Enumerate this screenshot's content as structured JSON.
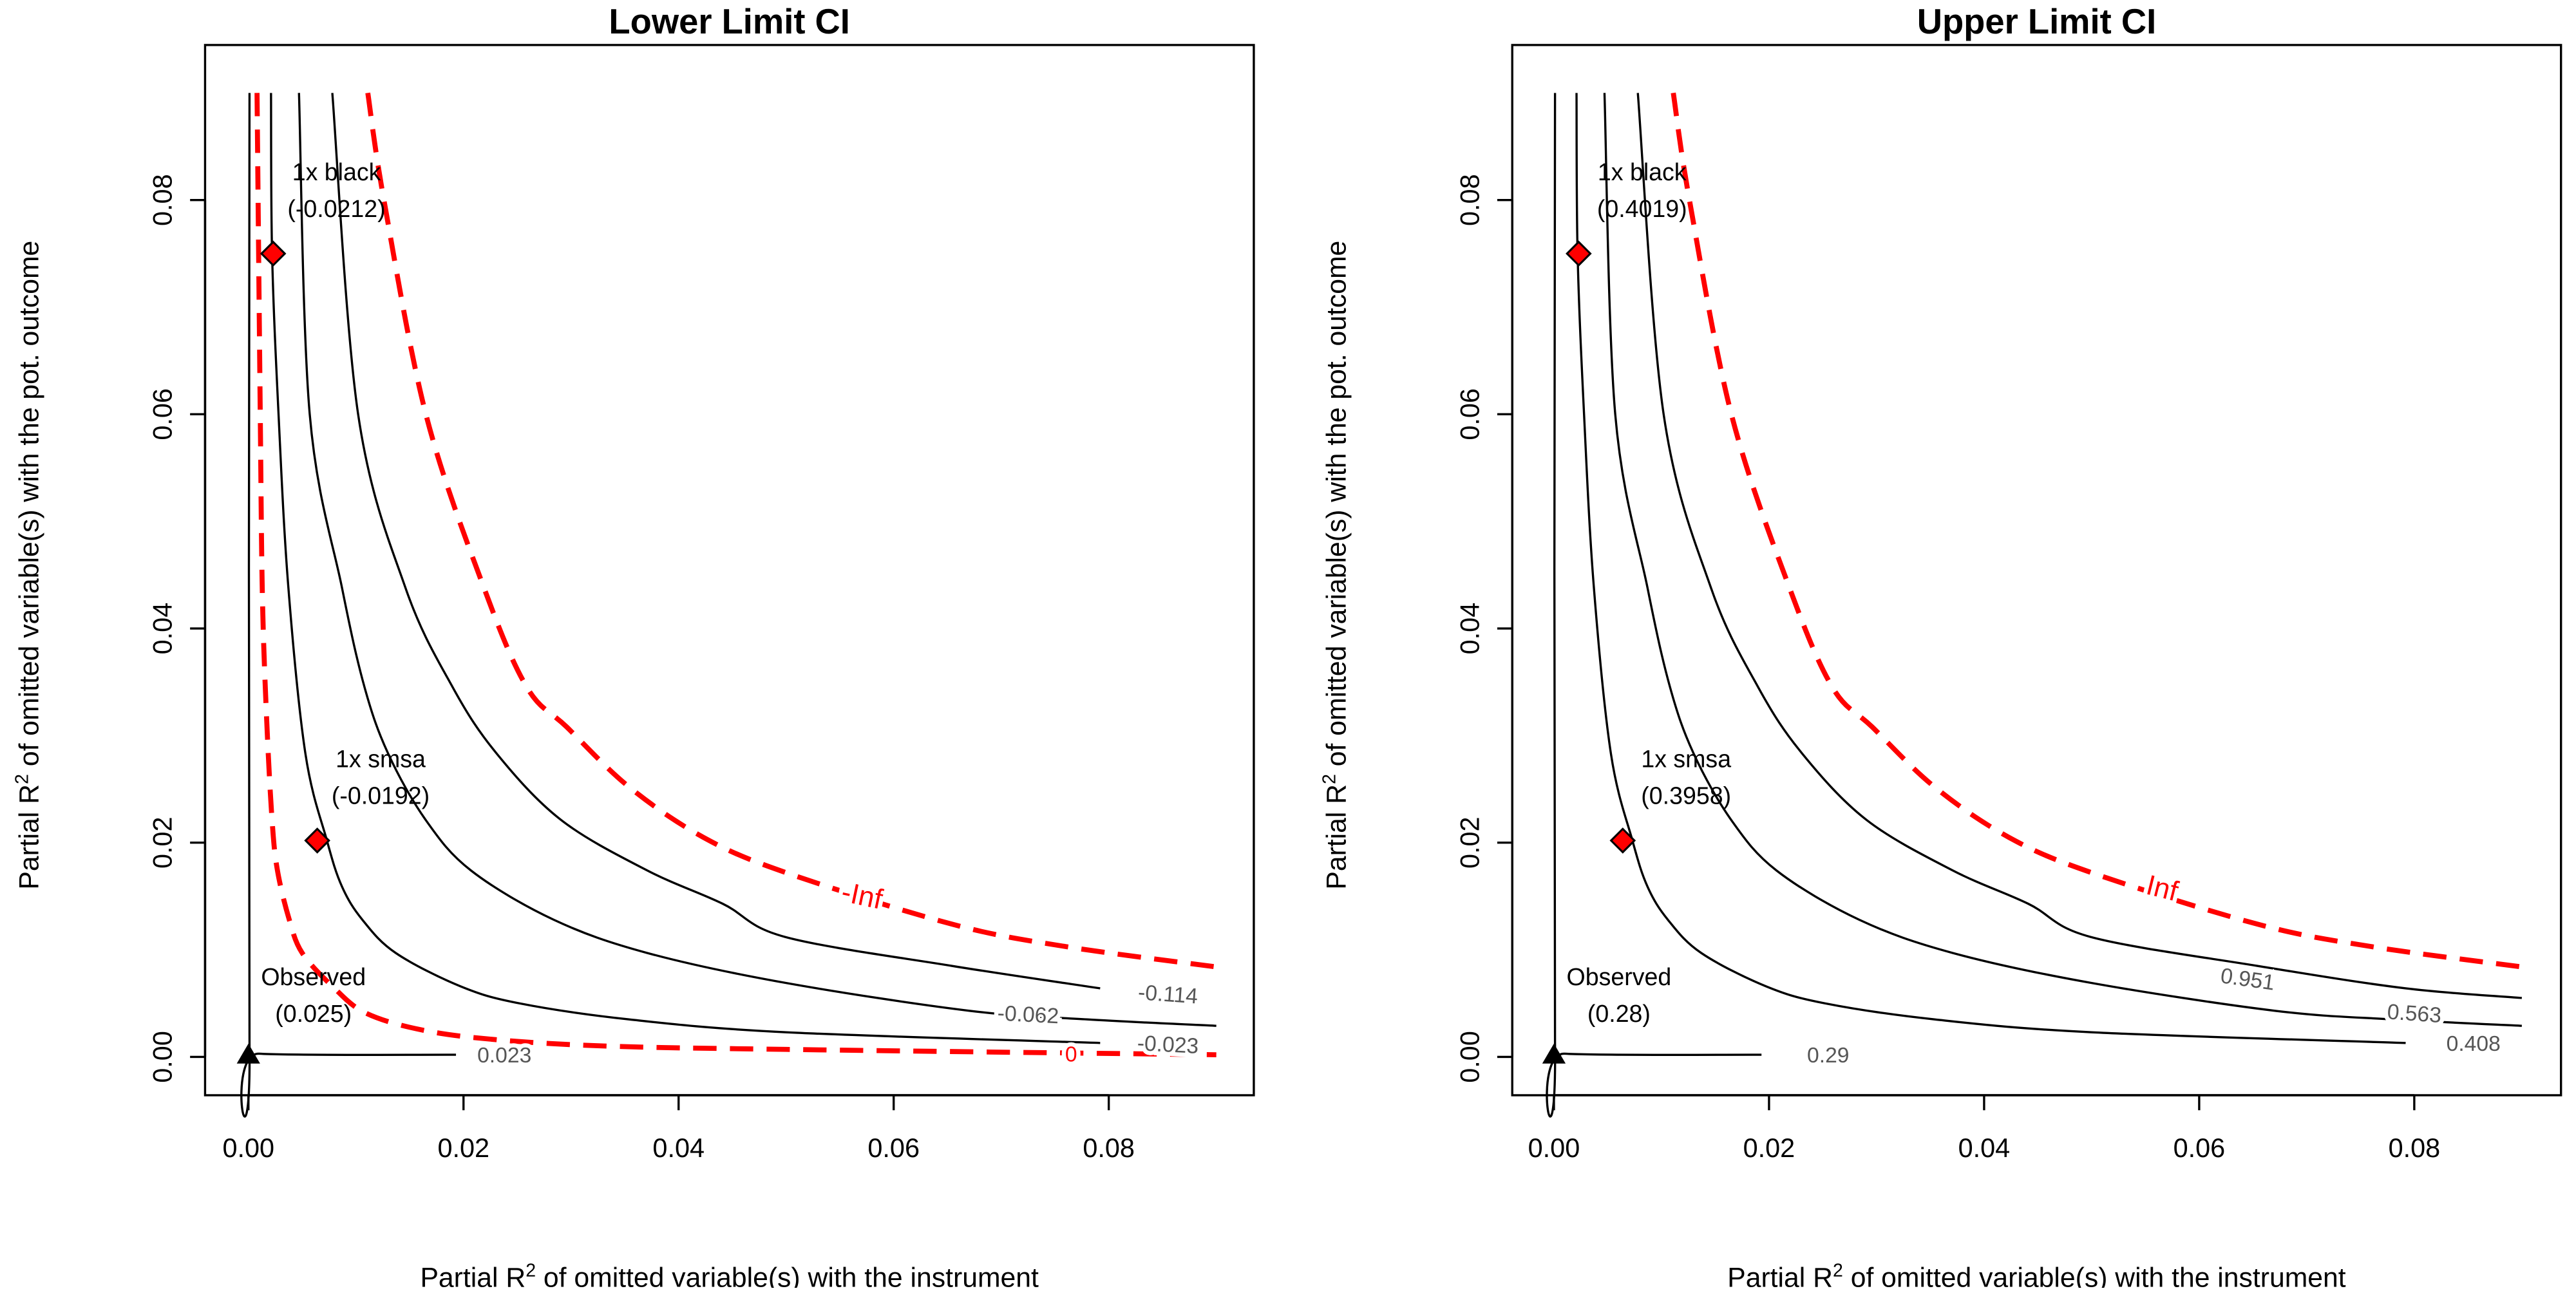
{
  "chart_data": [
    {
      "type": "contour",
      "title": "Lower Limit CI",
      "xlabel": "Partial R^2 of omitted variable(s) with the instrument",
      "ylabel": "Partial R^2 of omitted variable(s) with the pot. outcome",
      "xlim": [
        -0.0035,
        0.0935
      ],
      "ylim": [
        -0.0035,
        0.0945
      ],
      "xticks": [
        "0.00",
        "0.02",
        "0.04",
        "0.06",
        "0.08"
      ],
      "yticks": [
        "0.00",
        "0.02",
        "0.04",
        "0.06",
        "0.08"
      ],
      "grid": false,
      "colors": {
        "contour": "#000000",
        "critical": "#ff0000",
        "benchmark": "#ff0000"
      },
      "contours": [
        {
          "level": "0.023",
          "style": "solid",
          "points": [
            [
              0.0001,
              0.09
            ],
            [
              0.0001,
              0.0013
            ],
            [
              0.001,
              0.0003
            ],
            [
              0.0193,
              0.0002
            ]
          ]
        },
        {
          "level": "0",
          "style": "dashed-red",
          "points": [
            [
              0.0008,
              0.09
            ],
            [
              0.0011,
              0.06
            ],
            [
              0.0013,
              0.043
            ],
            [
              0.0017,
              0.0314
            ],
            [
              0.0022,
              0.0221
            ],
            [
              0.0027,
              0.0174
            ],
            [
              0.0038,
              0.0128
            ],
            [
              0.005,
              0.0097
            ],
            [
              0.0078,
              0.0066
            ],
            [
              0.0109,
              0.0041
            ],
            [
              0.0162,
              0.0025
            ],
            [
              0.0231,
              0.0016
            ],
            [
              0.0336,
              0.001
            ],
            [
              0.05,
              0.0007
            ],
            [
              0.09,
              0.0002
            ]
          ]
        },
        {
          "level": "-0.023",
          "style": "solid",
          "points": [
            [
              0.0021,
              0.09
            ],
            [
              0.0022,
              0.075
            ],
            [
              0.0028,
              0.06
            ],
            [
              0.0037,
              0.044
            ],
            [
              0.0053,
              0.0283
            ],
            [
              0.0073,
              0.0202
            ],
            [
              0.0087,
              0.0159
            ],
            [
              0.0106,
              0.0128
            ],
            [
              0.0137,
              0.0097
            ],
            [
              0.0197,
              0.0066
            ],
            [
              0.0252,
              0.005
            ],
            [
              0.0354,
              0.0035
            ],
            [
              0.05,
              0.0023
            ],
            [
              0.0792,
              0.0013
            ]
          ]
        },
        {
          "level": "-0.062",
          "style": "solid",
          "points": [
            [
              0.0047,
              0.09
            ],
            [
              0.0057,
              0.06
            ],
            [
              0.0087,
              0.0438
            ],
            [
              0.0108,
              0.0345
            ],
            [
              0.013,
              0.0283
            ],
            [
              0.0165,
              0.0221
            ],
            [
              0.0207,
              0.0174
            ],
            [
              0.0284,
              0.0128
            ],
            [
              0.0371,
              0.0097
            ],
            [
              0.05,
              0.0069
            ],
            [
              0.0671,
              0.0043
            ],
            [
              0.078,
              0.0035
            ],
            [
              0.09,
              0.0029
            ]
          ]
        },
        {
          "level": "-0.114",
          "style": "solid",
          "points": [
            [
              0.0078,
              0.09
            ],
            [
              0.0102,
              0.06
            ],
            [
              0.0146,
              0.0438
            ],
            [
              0.019,
              0.0345
            ],
            [
              0.0231,
              0.0283
            ],
            [
              0.0291,
              0.0221
            ],
            [
              0.0371,
              0.0174
            ],
            [
              0.0441,
              0.0143
            ],
            [
              0.0499,
              0.0112
            ],
            [
              0.0654,
              0.0085
            ],
            [
              0.0792,
              0.0064
            ]
          ]
        },
        {
          "level": "-Inf",
          "style": "dashed-red",
          "points": [
            [
              0.0111,
              0.09
            ],
            [
              0.0126,
              0.08
            ],
            [
              0.0165,
              0.06
            ],
            [
              0.0219,
              0.0438
            ],
            [
              0.0259,
              0.0345
            ],
            [
              0.0296,
              0.0308
            ],
            [
              0.0354,
              0.0252
            ],
            [
              0.0423,
              0.0205
            ],
            [
              0.05,
              0.0172
            ],
            [
              0.0654,
              0.0124
            ],
            [
              0.076,
              0.0103
            ],
            [
              0.09,
              0.0084
            ]
          ]
        }
      ],
      "points": [
        {
          "name": "Observed",
          "value": "(0.025)",
          "x": 0,
          "y": 0,
          "shape": "triangle"
        },
        {
          "name": "1x black",
          "value": "(-0.0212)",
          "x": 0.0023,
          "y": 0.075,
          "shape": "diamond"
        },
        {
          "name": "1x smsa",
          "value": "(-0.0192)",
          "x": 0.0064,
          "y": 0.0202,
          "shape": "diamond"
        }
      ]
    },
    {
      "type": "contour",
      "title": "Upper Limit CI",
      "xlabel": "Partial R^2 of omitted variable(s) with the instrument",
      "ylabel": "Partial R^2 of omitted variable(s) with the pot. outcome",
      "xlim": [
        -0.0035,
        0.0935
      ],
      "ylim": [
        -0.0035,
        0.0945
      ],
      "xticks": [
        "0.00",
        "0.02",
        "0.04",
        "0.06",
        "0.08"
      ],
      "yticks": [
        "0.00",
        "0.02",
        "0.04",
        "0.06",
        "0.08"
      ],
      "grid": false,
      "colors": {
        "contour": "#000000",
        "critical": "#ff0000",
        "benchmark": "#ff0000"
      },
      "contours": [
        {
          "level": "0.29",
          "style": "solid",
          "points": [
            [
              0.0001,
              0.09
            ],
            [
              0.0001,
              0.0013
            ],
            [
              0.001,
              0.0003
            ],
            [
              0.0193,
              0.0002
            ]
          ]
        },
        {
          "level": "0.408",
          "style": "solid",
          "points": [
            [
              0.0021,
              0.09
            ],
            [
              0.0022,
              0.075
            ],
            [
              0.0028,
              0.06
            ],
            [
              0.0037,
              0.044
            ],
            [
              0.0053,
              0.0283
            ],
            [
              0.0073,
              0.0202
            ],
            [
              0.0087,
              0.0159
            ],
            [
              0.0106,
              0.0128
            ],
            [
              0.0137,
              0.0097
            ],
            [
              0.0197,
              0.0066
            ],
            [
              0.0252,
              0.005
            ],
            [
              0.0354,
              0.0035
            ],
            [
              0.05,
              0.0023
            ],
            [
              0.0792,
              0.0013
            ]
          ]
        },
        {
          "level": "0.563",
          "style": "solid",
          "points": [
            [
              0.0047,
              0.09
            ],
            [
              0.0057,
              0.06
            ],
            [
              0.0087,
              0.0438
            ],
            [
              0.0108,
              0.0345
            ],
            [
              0.013,
              0.0283
            ],
            [
              0.0165,
              0.0221
            ],
            [
              0.0207,
              0.0174
            ],
            [
              0.0284,
              0.0128
            ],
            [
              0.0371,
              0.0097
            ],
            [
              0.05,
              0.0069
            ],
            [
              0.0671,
              0.0043
            ],
            [
              0.078,
              0.0035
            ],
            [
              0.09,
              0.0029
            ]
          ]
        },
        {
          "level": "0.951",
          "style": "solid",
          "points": [
            [
              0.0078,
              0.09
            ],
            [
              0.0102,
              0.06
            ],
            [
              0.0146,
              0.0438
            ],
            [
              0.019,
              0.0345
            ],
            [
              0.0231,
              0.0283
            ],
            [
              0.0291,
              0.0221
            ],
            [
              0.0371,
              0.0174
            ],
            [
              0.0441,
              0.0143
            ],
            [
              0.0499,
              0.0112
            ],
            [
              0.0654,
              0.0085
            ],
            [
              0.0792,
              0.0064
            ],
            [
              0.09,
              0.0055
            ]
          ]
        },
        {
          "level": "Inf",
          "style": "dashed-red",
          "points": [
            [
              0.0111,
              0.09
            ],
            [
              0.0126,
              0.08
            ],
            [
              0.0165,
              0.06
            ],
            [
              0.0219,
              0.0438
            ],
            [
              0.0259,
              0.0345
            ],
            [
              0.0296,
              0.0308
            ],
            [
              0.0354,
              0.0252
            ],
            [
              0.0423,
              0.0205
            ],
            [
              0.05,
              0.0172
            ],
            [
              0.0654,
              0.0124
            ],
            [
              0.076,
              0.0103
            ],
            [
              0.09,
              0.0084
            ]
          ]
        }
      ],
      "points": [
        {
          "name": "Observed",
          "value": "(0.28)",
          "x": 0,
          "y": 0,
          "shape": "triangle"
        },
        {
          "name": "1x black",
          "value": "(0.4019)",
          "x": 0.0023,
          "y": 0.075,
          "shape": "diamond"
        },
        {
          "name": "1x smsa",
          "value": "(0.3958)",
          "x": 0.0064,
          "y": 0.0202,
          "shape": "diamond"
        }
      ]
    }
  ]
}
